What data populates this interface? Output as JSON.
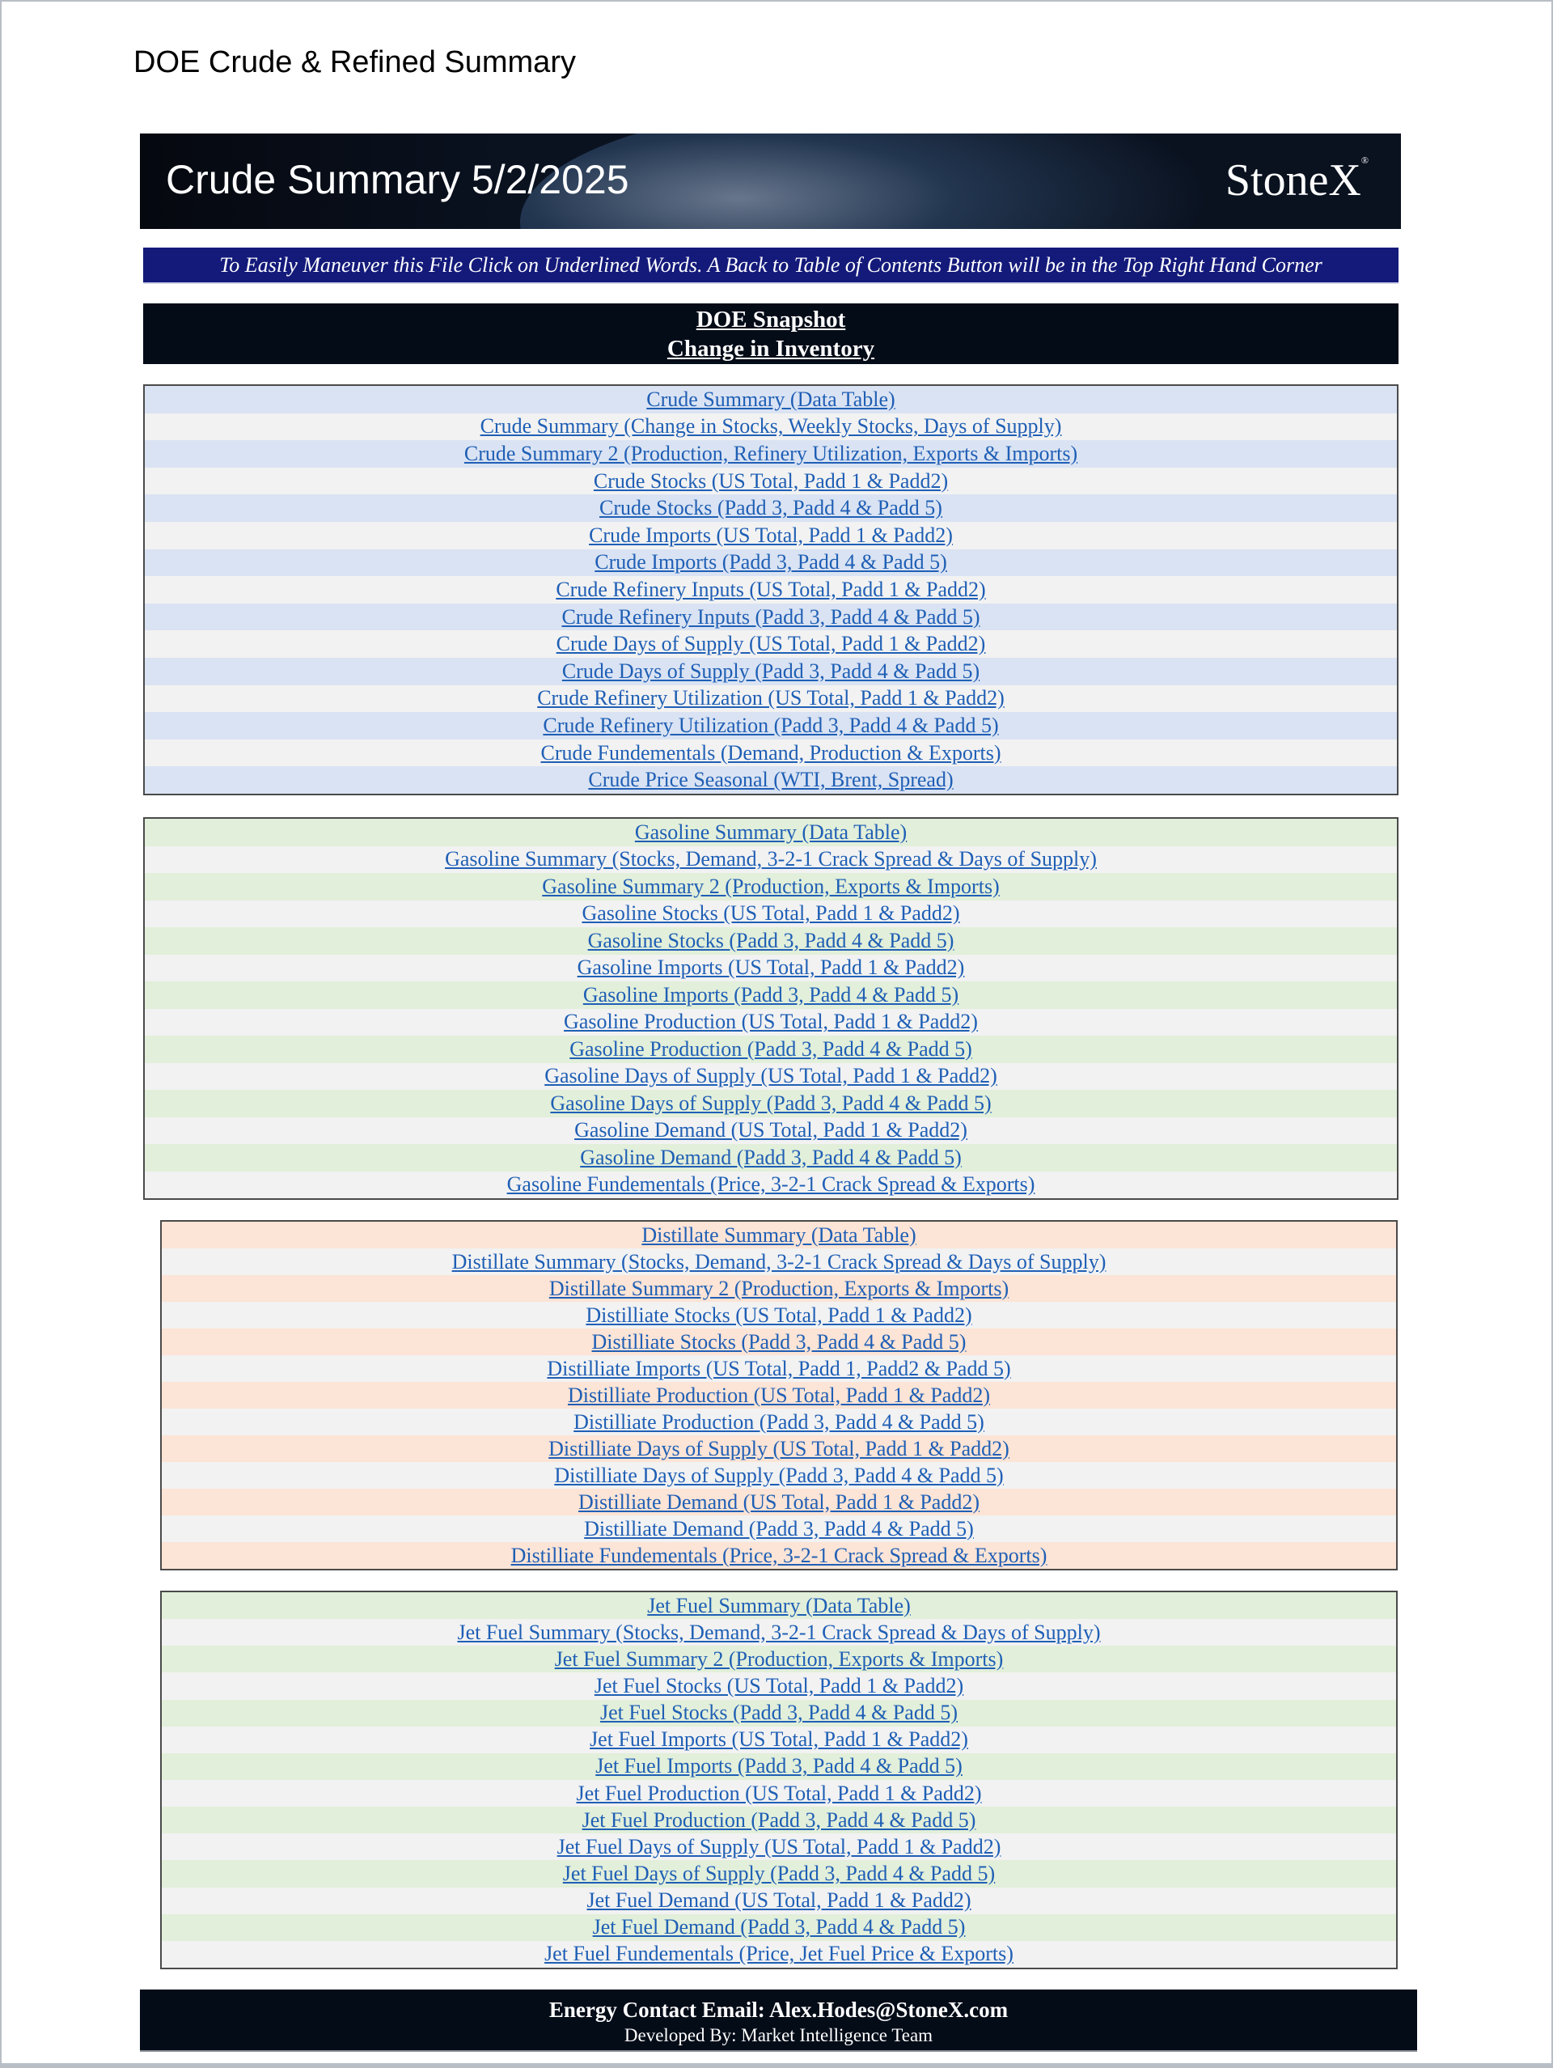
{
  "page_title": "DOE Crude & Refined Summary",
  "banner": {
    "title": "Crude Summary 5/2/2025",
    "logo_text": "StoneX"
  },
  "notice": "To Easily Maneuver this File Click on Underlined Words. A Back to Table of Contents Button will be in the Top Right Hand Corner",
  "snapshot": {
    "line1": "DOE Snapshot",
    "line2": "Change in Inventory"
  },
  "colors": {
    "link": "#1f5fb5",
    "crude_row": "#dae3f3",
    "alt_row": "#f2f2f2",
    "gasoline_row": "#e2efda",
    "distillate_row": "#fce4d6",
    "jet_row": "#e2efda",
    "header_bg": "#040c18",
    "notice_bg": "#141a7a"
  },
  "sections": [
    {
      "id": "crude",
      "items": [
        "Crude Summary (Data Table)",
        "Crude  Summary (Change in Stocks, Weekly Stocks, Days of Supply)",
        "Crude  Summary 2 (Production, Refinery Utilization, Exports & Imports)",
        "Crude Stocks (US Total, Padd 1 & Padd2)",
        "Crude Stocks (Padd 3, Padd 4 & Padd 5)",
        "Crude Imports (US Total, Padd 1 & Padd2)",
        "Crude Imports (Padd 3, Padd 4 & Padd 5)",
        "Crude Refinery Inputs (US Total, Padd 1 & Padd2)",
        "Crude Refinery Inputs (Padd 3, Padd 4 & Padd 5)",
        "Crude Days of Supply (US Total, Padd 1 & Padd2)",
        "Crude Days of Supply (Padd 3, Padd 4 & Padd 5)",
        "Crude Refinery Utilization (US Total, Padd 1 & Padd2)",
        "Crude Refinery Utilization (Padd 3, Padd 4 & Padd 5)",
        "Crude Fundementals (Demand, Production & Exports)",
        "Crude Price Seasonal (WTI, Brent, Spread)"
      ]
    },
    {
      "id": "gasoline",
      "items": [
        "Gasoline Summary (Data Table)",
        "Gasoline Summary (Stocks, Demand, 3-2-1 Crack Spread & Days of Supply)",
        "Gasoline Summary 2 (Production, Exports & Imports)",
        "Gasoline Stocks (US Total, Padd 1 & Padd2)",
        "Gasoline Stocks (Padd 3, Padd 4 & Padd 5)",
        "Gasoline Imports (US Total, Padd 1 & Padd2)",
        "Gasoline Imports (Padd 3, Padd 4 & Padd 5)",
        "Gasoline Production (US Total, Padd 1 & Padd2)",
        "Gasoline Production (Padd 3, Padd 4 & Padd 5)",
        "Gasoline Days of Supply (US Total, Padd 1 & Padd2)",
        "Gasoline Days of Supply (Padd 3, Padd 4 & Padd 5)",
        "Gasoline Demand (US Total, Padd 1 & Padd2)",
        "Gasoline Demand (Padd 3, Padd 4 & Padd 5)",
        "Gasoline Fundementals (Price, 3-2-1 Crack Spread & Exports)"
      ]
    },
    {
      "id": "distillate",
      "items": [
        "Distillate Summary (Data Table)",
        "Distillate Summary (Stocks, Demand, 3-2-1 Crack Spread & Days of Supply)",
        "Distillate Summary 2 (Production, Exports & Imports)",
        "Distilliate Stocks (US Total, Padd 1 & Padd2)",
        "Distilliate Stocks (Padd 3, Padd 4 & Padd 5)",
        "Distilliate Imports (US Total, Padd 1, Padd2 & Padd 5)",
        "Distilliate Production (US Total, Padd 1 & Padd2)",
        "Distilliate Production (Padd 3, Padd 4 & Padd 5)",
        "Distilliate Days of Supply (US Total, Padd 1 & Padd2)",
        "Distilliate Days of Supply (Padd 3, Padd 4 & Padd 5)",
        "Distilliate Demand (US Total, Padd 1 & Padd2)",
        "Distilliate Demand (Padd 3, Padd 4 & Padd 5)",
        "Distilliate Fundementals (Price, 3-2-1 Crack Spread & Exports)"
      ]
    },
    {
      "id": "jet-fuel",
      "items": [
        "Jet Fuel Summary (Data Table)",
        "Jet Fuel Summary (Stocks, Demand, 3-2-1 Crack Spread & Days of Supply)",
        "Jet Fuel Summary 2 (Production, Exports & Imports)",
        "Jet Fuel Stocks (US Total, Padd 1 & Padd2)",
        "Jet Fuel Stocks (Padd 3, Padd 4 & Padd 5)",
        "Jet Fuel Imports (US Total, Padd 1 & Padd2)",
        "Jet Fuel Imports (Padd 3, Padd 4 & Padd 5)",
        "Jet Fuel Production (US Total, Padd 1 & Padd2)",
        "Jet Fuel Production (Padd 3, Padd 4 & Padd 5)",
        "Jet Fuel Days of Supply (US Total, Padd 1 & Padd2)",
        "Jet Fuel Days of Supply (Padd 3, Padd 4 & Padd 5)",
        "Jet Fuel Demand (US Total, Padd 1 & Padd2)",
        "Jet Fuel Demand (Padd 3, Padd 4 & Padd 5)",
        "Jet Fuel Fundementals (Price, Jet Fuel Price & Exports)"
      ]
    }
  ],
  "footer": {
    "contact": "Energy Contact Email: Alex.Hodes@StoneX.com",
    "developed_by": "Developed By: Market Intelligence Team"
  }
}
